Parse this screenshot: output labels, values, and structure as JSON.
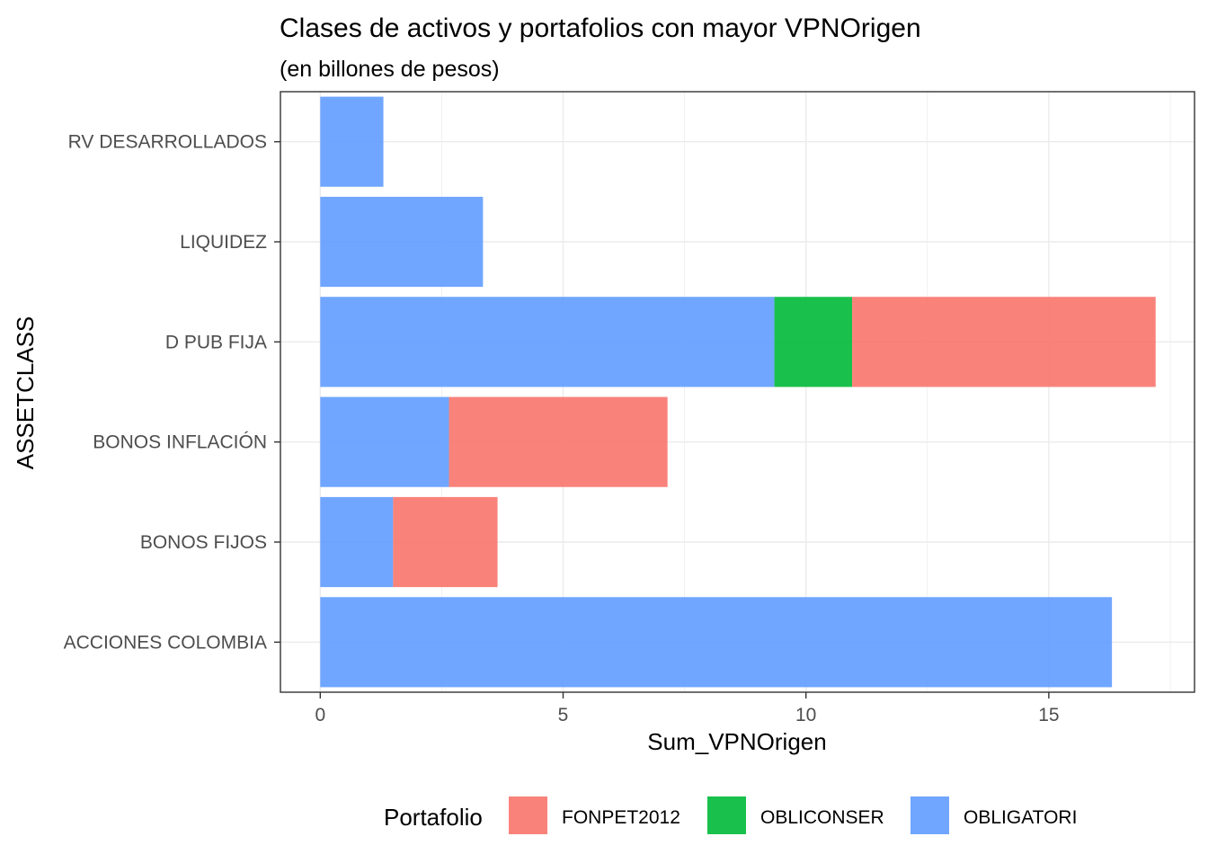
{
  "chart_data": {
    "type": "bar",
    "orientation": "horizontal",
    "stacked": true,
    "title": "Clases de activos y portafolios con mayor VPNOrigen",
    "subtitle": "(en billones de pesos)",
    "xlabel": "Sum_VPNOrigen",
    "ylabel": "ASSETCLASS",
    "xlim": [
      -0.82,
      18.0
    ],
    "xticks": [
      0,
      5,
      10,
      15
    ],
    "xtick_labels": [
      "0",
      "5",
      "10",
      "15"
    ],
    "grid": true,
    "categories": [
      "ACCIONES COLOMBIA",
      "BONOS FIJOS",
      "BONOS INFLACIÓN",
      "D PUB FIJA",
      "LIQUIDEZ",
      "RV DESARROLLADOS"
    ],
    "series": [
      {
        "name": "OBLIGATORI",
        "color": "#619CFF",
        "values": [
          16.3,
          1.5,
          2.65,
          9.35,
          3.35,
          1.3
        ]
      },
      {
        "name": "OBLICONSER",
        "color": "#00BA38",
        "values": [
          0,
          0,
          0,
          1.6,
          0,
          0
        ]
      },
      {
        "name": "FONPET2012",
        "color": "#F8766D",
        "values": [
          0,
          2.15,
          4.5,
          6.25,
          0,
          0
        ]
      }
    ],
    "legend": {
      "title": "Portafolio",
      "position": "bottom",
      "entries": [
        {
          "label": "FONPET2012",
          "color": "#F8766D"
        },
        {
          "label": "OBLICONSER",
          "color": "#00BA38"
        },
        {
          "label": "OBLIGATORI",
          "color": "#619CFF"
        }
      ]
    }
  }
}
